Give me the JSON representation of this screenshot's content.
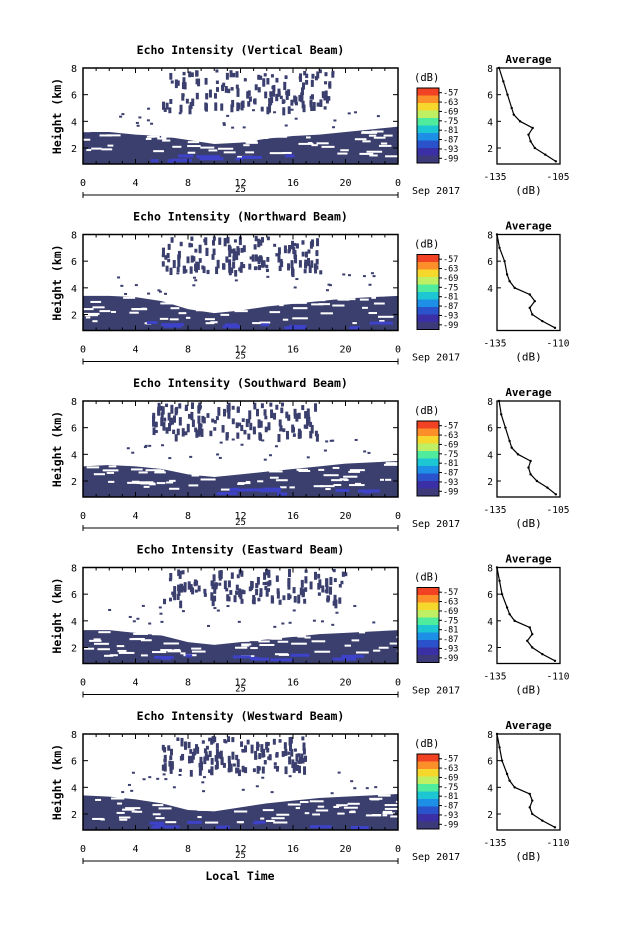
{
  "figure": {
    "date_axis_label": "Sep 2017",
    "day_label": "25",
    "xlabel": "Local Time",
    "colorbar_unit": "(dB)",
    "colorbar_ticks": [
      "-57",
      "-63",
      "-69",
      "-75",
      "-81",
      "-87",
      "-93",
      "-99"
    ],
    "colorbar_colors": [
      "#f24224",
      "#fd8f2a",
      "#f6d82c",
      "#bff063",
      "#50ec9e",
      "#1cc6d3",
      "#1e8fe7",
      "#2a52cb",
      "#3a2fa5",
      "#3d3a7a"
    ],
    "echo_color": "#3b3f6e",
    "strong_echo_color": "#3d42c9",
    "profile_title": "Average",
    "profile_xlabel": "(dB)"
  },
  "chart_data": [
    {
      "type": "heatmap",
      "title": "Echo Intensity (Vertical Beam)",
      "ylabel": "Height (km)",
      "x_ticks": [
        "0",
        "4",
        "8",
        "12",
        "16",
        "20",
        "0"
      ],
      "y_ticks": [
        "2",
        "4",
        "6",
        "8"
      ],
      "xlim_hours": [
        0,
        24
      ],
      "ylim_km": [
        0.8,
        8
      ],
      "layer_top_km": [
        3.2,
        3.2,
        3.0,
        2.9,
        2.6,
        2.3,
        2.4,
        2.7,
        2.9,
        3.0,
        3.2,
        3.4,
        3.6
      ],
      "upper_echo_hours": [
        6,
        19
      ],
      "upper_echo_km": [
        5.0,
        7.9
      ],
      "profile": {
        "height_km": [
          1.0,
          1.5,
          2.0,
          2.5,
          3.0,
          3.5,
          4.0,
          4.5,
          5.0,
          6.0,
          7.0,
          8.0
        ],
        "intensity_db": [
          -107,
          -112,
          -117,
          -119,
          -120,
          -118,
          -124,
          -127,
          -128,
          -130,
          -132,
          -134
        ],
        "xlim": [
          -135,
          -105
        ],
        "x_ticks": [
          "-135",
          "-105"
        ],
        "y_ticks": [
          "2",
          "4",
          "6",
          "8"
        ]
      }
    },
    {
      "type": "heatmap",
      "title": "Echo Intensity (Northward Beam)",
      "ylabel": "Height (km)",
      "x_ticks": [
        "0",
        "4",
        "8",
        "12",
        "16",
        "20",
        "0"
      ],
      "y_ticks": [
        "2",
        "4",
        "6",
        "8"
      ],
      "xlim_hours": [
        0,
        24
      ],
      "ylim_km": [
        0.8,
        8
      ],
      "layer_top_km": [
        3.4,
        3.4,
        3.3,
        3.0,
        2.4,
        2.1,
        2.3,
        2.6,
        2.8,
        3.0,
        3.2,
        3.3,
        3.4
      ],
      "upper_echo_hours": [
        6,
        18
      ],
      "upper_echo_km": [
        5.3,
        7.9
      ],
      "profile": {
        "height_km": [
          1.0,
          1.5,
          2.0,
          2.5,
          3.0,
          3.5,
          4.0,
          4.5,
          5.0,
          6.0,
          7.0,
          8.0
        ],
        "intensity_db": [
          -112,
          -117,
          -121,
          -122,
          -120,
          -122,
          -128,
          -130,
          -131,
          -132,
          -134,
          -135
        ],
        "xlim": [
          -135,
          -110
        ],
        "x_ticks": [
          "-135",
          "-110"
        ],
        "y_ticks": [
          "4",
          "6",
          "8"
        ]
      }
    },
    {
      "type": "heatmap",
      "title": "Echo Intensity (Southward Beam)",
      "ylabel": "Height (km)",
      "x_ticks": [
        "0",
        "4",
        "8",
        "12",
        "16",
        "20",
        "0"
      ],
      "y_ticks": [
        "2",
        "4",
        "6",
        "8"
      ],
      "xlim_hours": [
        0,
        24
      ],
      "ylim_km": [
        0.8,
        8
      ],
      "layer_top_km": [
        3.1,
        3.2,
        3.1,
        2.9,
        2.5,
        2.3,
        2.5,
        2.7,
        2.9,
        3.1,
        3.3,
        3.4,
        3.5
      ],
      "upper_echo_hours": [
        5,
        18
      ],
      "upper_echo_km": [
        5.5,
        7.9
      ],
      "profile": {
        "height_km": [
          1.0,
          1.5,
          2.0,
          2.5,
          3.0,
          3.5,
          4.0,
          4.5,
          5.0,
          6.0,
          7.0,
          8.0
        ],
        "intensity_db": [
          -107,
          -111,
          -116,
          -119,
          -120,
          -119,
          -125,
          -128,
          -129,
          -131,
          -133,
          -134
        ],
        "xlim": [
          -135,
          -105
        ],
        "x_ticks": [
          "-135",
          "-105"
        ],
        "y_ticks": [
          "2",
          "4",
          "6",
          "8"
        ]
      }
    },
    {
      "type": "heatmap",
      "title": "Echo Intensity (Eastward Beam)",
      "ylabel": "Height (km)",
      "x_ticks": [
        "0",
        "4",
        "8",
        "12",
        "16",
        "20",
        "0"
      ],
      "y_ticks": [
        "2",
        "4",
        "6",
        "8"
      ],
      "xlim_hours": [
        0,
        24
      ],
      "ylim_km": [
        0.8,
        8
      ],
      "layer_top_km": [
        3.3,
        3.3,
        3.1,
        2.9,
        2.4,
        2.2,
        2.4,
        2.6,
        2.8,
        3.0,
        3.1,
        3.2,
        3.3
      ],
      "upper_echo_hours": [
        6,
        20
      ],
      "upper_echo_km": [
        5.5,
        7.9
      ],
      "profile": {
        "height_km": [
          1.0,
          1.5,
          2.0,
          2.5,
          3.0,
          3.5,
          4.0,
          4.5,
          5.0,
          6.0,
          7.0,
          8.0
        ],
        "intensity_db": [
          -112,
          -117,
          -121,
          -123,
          -121,
          -122,
          -128,
          -130,
          -131,
          -133,
          -134,
          -135
        ],
        "xlim": [
          -135,
          -110
        ],
        "x_ticks": [
          "-135",
          "-110"
        ],
        "y_ticks": [
          "2",
          "4",
          "6",
          "8"
        ]
      }
    },
    {
      "type": "heatmap",
      "title": "Echo Intensity (Westward Beam)",
      "ylabel": "Height (km)",
      "x_ticks": [
        "0",
        "4",
        "8",
        "12",
        "16",
        "20",
        "0"
      ],
      "y_ticks": [
        "2",
        "4",
        "6",
        "8"
      ],
      "xlim_hours": [
        0,
        24
      ],
      "ylim_km": [
        0.8,
        8
      ],
      "layer_top_km": [
        3.4,
        3.3,
        3.1,
        2.8,
        2.3,
        2.2,
        2.5,
        2.8,
        3.0,
        3.2,
        3.3,
        3.4,
        3.5
      ],
      "upper_echo_hours": [
        6,
        17
      ],
      "upper_echo_km": [
        5.3,
        7.9
      ],
      "profile": {
        "height_km": [
          1.0,
          1.5,
          2.0,
          2.5,
          3.0,
          3.5,
          4.0,
          4.5,
          5.0,
          6.0,
          7.0,
          8.0
        ],
        "intensity_db": [
          -112,
          -117,
          -121,
          -122,
          -121,
          -122,
          -128,
          -130,
          -131,
          -133,
          -134,
          -135
        ],
        "xlim": [
          -135,
          -110
        ],
        "x_ticks": [
          "-135",
          "-110"
        ],
        "y_ticks": [
          "2",
          "4",
          "6",
          "8"
        ]
      }
    }
  ]
}
